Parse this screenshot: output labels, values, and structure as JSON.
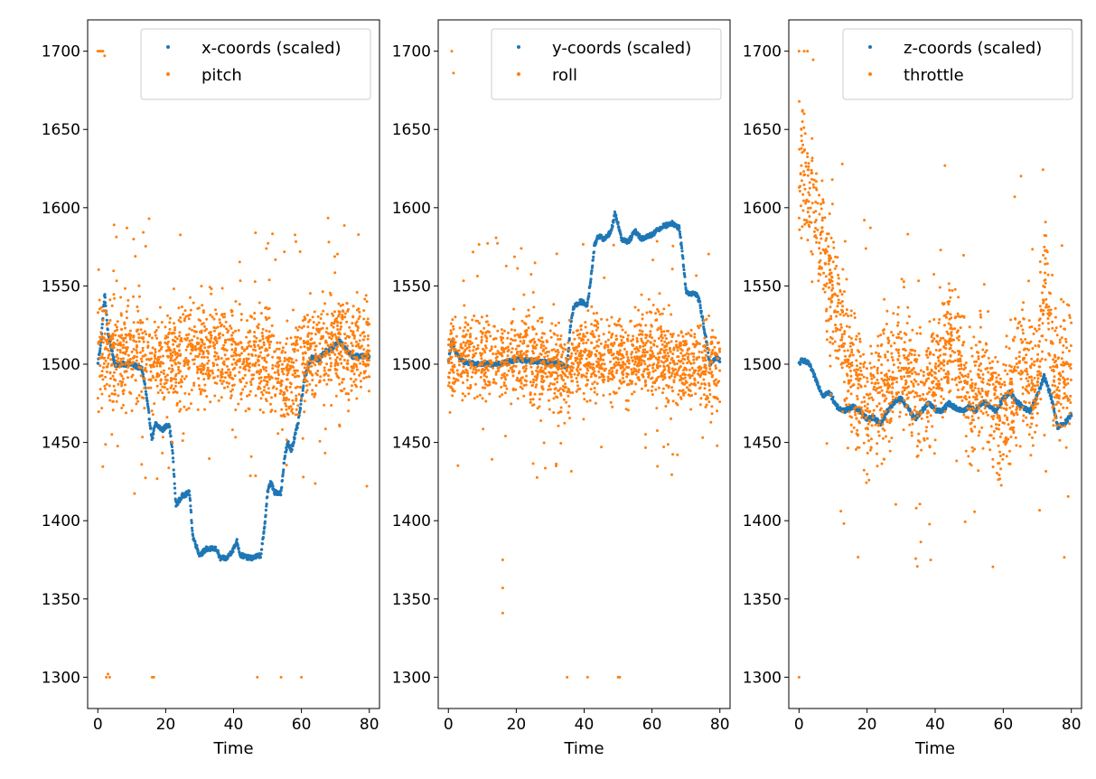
{
  "chart_data": [
    {
      "type": "scatter",
      "xlabel": "Time",
      "ylabel": "",
      "xlim": [
        -3,
        83
      ],
      "ylim": [
        1280,
        1720
      ],
      "xticks": [
        0,
        20,
        40,
        60,
        80
      ],
      "yticks": [
        1300,
        1350,
        1400,
        1450,
        1500,
        1550,
        1600,
        1650,
        1700
      ],
      "legend_position": "top-right",
      "series": [
        {
          "name": "x-coords (scaled)",
          "color": "#1f77b4",
          "shape": "piecewise",
          "points": [
            [
              0,
              1500
            ],
            [
              1,
              1515
            ],
            [
              2,
              1545
            ],
            [
              3,
              1520
            ],
            [
              5,
              1500
            ],
            [
              10,
              1500
            ],
            [
              13,
              1497
            ],
            [
              14,
              1485
            ],
            [
              16,
              1452
            ],
            [
              17,
              1462
            ],
            [
              19,
              1458
            ],
            [
              21,
              1462
            ],
            [
              22,
              1445
            ],
            [
              23,
              1410
            ],
            [
              25,
              1416
            ],
            [
              27,
              1418
            ],
            [
              28,
              1390
            ],
            [
              30,
              1378
            ],
            [
              32,
              1382
            ],
            [
              35,
              1382
            ],
            [
              36,
              1376
            ],
            [
              38,
              1376
            ],
            [
              40,
              1382
            ],
            [
              41,
              1387
            ],
            [
              42,
              1378
            ],
            [
              45,
              1376
            ],
            [
              48,
              1378
            ],
            [
              49,
              1393
            ],
            [
              50,
              1418
            ],
            [
              51,
              1425
            ],
            [
              52,
              1418
            ],
            [
              54,
              1418
            ],
            [
              55,
              1440
            ],
            [
              56,
              1450
            ],
            [
              57,
              1445
            ],
            [
              59,
              1462
            ],
            [
              61,
              1492
            ],
            [
              63,
              1505
            ],
            [
              65,
              1503
            ],
            [
              67,
              1508
            ],
            [
              69,
              1510
            ],
            [
              71,
              1515
            ],
            [
              73,
              1510
            ],
            [
              75,
              1505
            ],
            [
              78,
              1505
            ],
            [
              80,
              1505
            ]
          ],
          "samples": 900
        },
        {
          "name": "pitch",
          "color": "#ff7f0e",
          "shape": "noisy",
          "center": [
            [
              0,
              1505
            ],
            [
              3,
              1510
            ],
            [
              10,
              1505
            ],
            [
              20,
              1502
            ],
            [
              30,
              1508
            ],
            [
              40,
              1508
            ],
            [
              50,
              1500
            ],
            [
              55,
              1485
            ],
            [
              60,
              1505
            ],
            [
              70,
              1510
            ],
            [
              80,
              1510
            ]
          ],
          "band": 28,
          "samples": 1700,
          "outlier_frac": 0.08,
          "sticky": [
            [
              0,
              1700
            ],
            [
              0.5,
              1700
            ],
            [
              1,
              1700
            ],
            [
              1.5,
              1700
            ],
            [
              2,
              1697
            ],
            [
              2.5,
              1300
            ],
            [
              3,
              1302
            ],
            [
              3.5,
              1300
            ],
            [
              16,
              1300
            ],
            [
              16.5,
              1300
            ],
            [
              47,
              1300
            ],
            [
              54,
              1300
            ],
            [
              60,
              1300
            ]
          ]
        }
      ]
    },
    {
      "type": "scatter",
      "xlabel": "Time",
      "ylabel": "",
      "xlim": [
        -3,
        83
      ],
      "ylim": [
        1280,
        1720
      ],
      "xticks": [
        0,
        20,
        40,
        60,
        80
      ],
      "yticks": [
        1300,
        1350,
        1400,
        1450,
        1500,
        1550,
        1600,
        1650,
        1700
      ],
      "legend_position": "top-right",
      "series": [
        {
          "name": "y-coords (scaled)",
          "color": "#1f77b4",
          "shape": "piecewise",
          "points": [
            [
              0,
              1502
            ],
            [
              1,
              1515
            ],
            [
              2,
              1508
            ],
            [
              4,
              1502
            ],
            [
              8,
              1500
            ],
            [
              15,
              1500
            ],
            [
              20,
              1503
            ],
            [
              25,
              1502
            ],
            [
              30,
              1501
            ],
            [
              33,
              1500
            ],
            [
              35,
              1498
            ],
            [
              36,
              1525
            ],
            [
              37,
              1537
            ],
            [
              39,
              1540
            ],
            [
              41,
              1538
            ],
            [
              42,
              1555
            ],
            [
              43,
              1575
            ],
            [
              44,
              1582
            ],
            [
              46,
              1580
            ],
            [
              48,
              1585
            ],
            [
              49,
              1596
            ],
            [
              50,
              1590
            ],
            [
              51,
              1580
            ],
            [
              53,
              1578
            ],
            [
              55,
              1585
            ],
            [
              57,
              1580
            ],
            [
              60,
              1583
            ],
            [
              63,
              1588
            ],
            [
              66,
              1590
            ],
            [
              68,
              1587
            ],
            [
              69,
              1570
            ],
            [
              70,
              1547
            ],
            [
              71,
              1545
            ],
            [
              73,
              1545
            ],
            [
              74,
              1540
            ],
            [
              76,
              1515
            ],
            [
              77,
              1500
            ],
            [
              79,
              1505
            ],
            [
              80,
              1502
            ]
          ],
          "samples": 900
        },
        {
          "name": "roll",
          "color": "#ff7f0e",
          "shape": "noisy",
          "center": [
            [
              0,
              1505
            ],
            [
              10,
              1505
            ],
            [
              20,
              1505
            ],
            [
              30,
              1502
            ],
            [
              35,
              1495
            ],
            [
              40,
              1505
            ],
            [
              50,
              1500
            ],
            [
              60,
              1508
            ],
            [
              70,
              1500
            ],
            [
              80,
              1495
            ]
          ],
          "band": 24,
          "samples": 1700,
          "outlier_frac": 0.06,
          "sticky": [
            [
              1,
              1700
            ],
            [
              1.5,
              1686
            ],
            [
              35,
              1300
            ],
            [
              41,
              1300
            ],
            [
              50,
              1300
            ],
            [
              50.5,
              1300
            ],
            [
              16,
              1341
            ],
            [
              16,
              1357
            ],
            [
              16,
              1375
            ]
          ]
        }
      ]
    },
    {
      "type": "scatter",
      "xlabel": "Time",
      "ylabel": "",
      "xlim": [
        -3,
        83
      ],
      "ylim": [
        1280,
        1720
      ],
      "xticks": [
        0,
        20,
        40,
        60,
        80
      ],
      "yticks": [
        1300,
        1350,
        1400,
        1450,
        1500,
        1550,
        1600,
        1650,
        1700
      ],
      "legend_position": "top-right",
      "series": [
        {
          "name": "z-coords (scaled)",
          "color": "#1f77b4",
          "shape": "piecewise",
          "points": [
            [
              0,
              1500
            ],
            [
              1,
              1503
            ],
            [
              3,
              1500
            ],
            [
              5,
              1490
            ],
            [
              7,
              1480
            ],
            [
              9,
              1482
            ],
            [
              11,
              1473
            ],
            [
              13,
              1470
            ],
            [
              16,
              1473
            ],
            [
              18,
              1470
            ],
            [
              20,
              1465
            ],
            [
              22,
              1466
            ],
            [
              24,
              1462
            ],
            [
              26,
              1470
            ],
            [
              28,
              1476
            ],
            [
              30,
              1478
            ],
            [
              32,
              1472
            ],
            [
              34,
              1465
            ],
            [
              36,
              1470
            ],
            [
              38,
              1475
            ],
            [
              40,
              1471
            ],
            [
              42,
              1470
            ],
            [
              44,
              1475
            ],
            [
              46,
              1472
            ],
            [
              48,
              1470
            ],
            [
              50,
              1473
            ],
            [
              52,
              1470
            ],
            [
              54,
              1476
            ],
            [
              56,
              1473
            ],
            [
              58,
              1470
            ],
            [
              60,
              1478
            ],
            [
              62,
              1482
            ],
            [
              64,
              1476
            ],
            [
              66,
              1472
            ],
            [
              68,
              1470
            ],
            [
              70,
              1480
            ],
            [
              72,
              1492
            ],
            [
              74,
              1480
            ],
            [
              76,
              1460
            ],
            [
              78,
              1462
            ],
            [
              80,
              1468
            ]
          ],
          "samples": 900
        },
        {
          "name": "throttle",
          "color": "#ff7f0e",
          "shape": "noisy",
          "center": [
            [
              0,
              1625
            ],
            [
              2,
              1620
            ],
            [
              5,
              1590
            ],
            [
              8,
              1560
            ],
            [
              12,
              1530
            ],
            [
              16,
              1490
            ],
            [
              20,
              1470
            ],
            [
              25,
              1485
            ],
            [
              30,
              1505
            ],
            [
              35,
              1480
            ],
            [
              40,
              1490
            ],
            [
              45,
              1520
            ],
            [
              50,
              1480
            ],
            [
              55,
              1490
            ],
            [
              60,
              1460
            ],
            [
              65,
              1500
            ],
            [
              70,
              1480
            ],
            [
              72,
              1560
            ],
            [
              75,
              1490
            ],
            [
              80,
              1495
            ]
          ],
          "band": 38,
          "samples": 1700,
          "outlier_frac": 0.05,
          "sticky": [
            [
              0,
              1300
            ],
            [
              0,
              1700
            ],
            [
              1.5,
              1700
            ],
            [
              2.5,
              1700
            ],
            [
              1,
              1655
            ],
            [
              1.5,
              1660
            ]
          ]
        }
      ]
    }
  ]
}
